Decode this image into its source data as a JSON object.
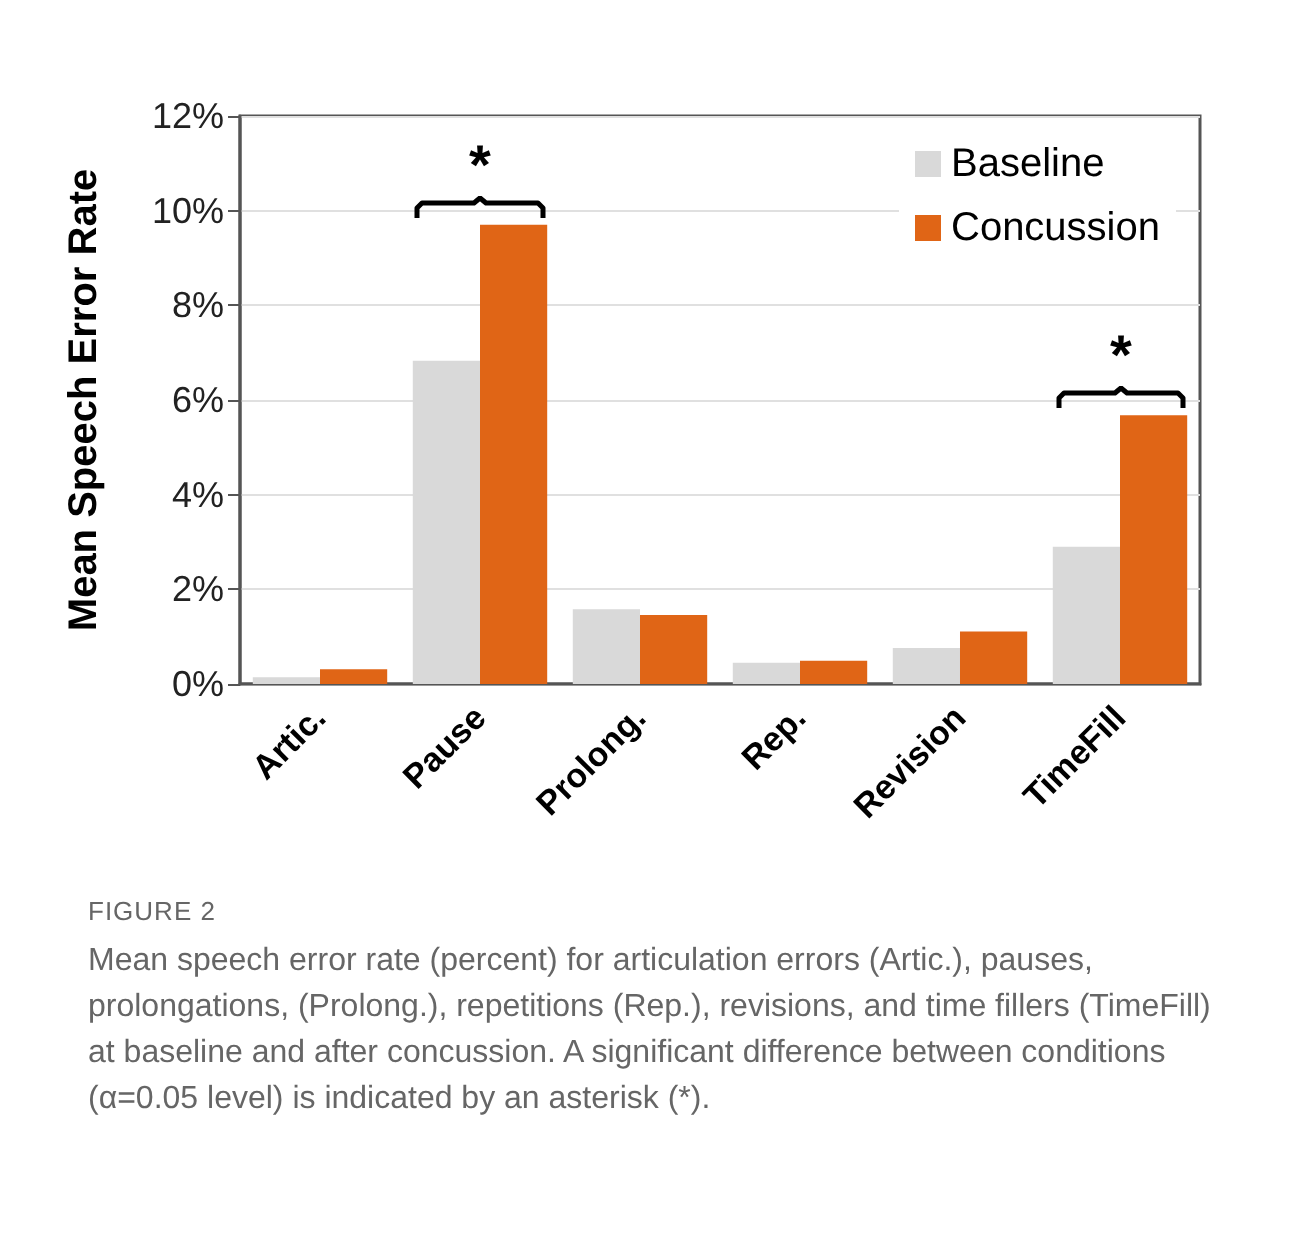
{
  "chart_data": {
    "type": "bar",
    "ylabel": "Mean Speech Error Rate",
    "categories": [
      "Artic.",
      "Pause",
      "Prolong.",
      "Rep.",
      "Revision",
      "TimeFill"
    ],
    "series": [
      {
        "name": "Baseline",
        "color": "#d9d9d9",
        "values": [
          0.14,
          6.83,
          1.58,
          0.45,
          0.76,
          2.9
        ]
      },
      {
        "name": "Concussion",
        "color": "#e06516",
        "values": [
          0.31,
          9.7,
          1.46,
          0.49,
          1.11,
          5.68
        ]
      }
    ],
    "ylim": [
      0,
      12
    ],
    "yticks": [
      {
        "value": 0,
        "label": "0%"
      },
      {
        "value": 2,
        "label": "2%"
      },
      {
        "value": 4,
        "label": "4%"
      },
      {
        "value": 6,
        "label": "6%"
      },
      {
        "value": 8,
        "label": "8%"
      },
      {
        "value": 10,
        "label": "10%"
      },
      {
        "value": 12,
        "label": "12%"
      }
    ],
    "grid": "y",
    "legend": "top right",
    "annotations": [
      "*",
      "*",
      "FIGURE 2",
      "Mean speech error rate (percent) for articulation errors (Artic.), pauses, prolongations, (Prolong.), repetitions (Rep.), revisions, and time fillers (TimeFill) at baseline and after concussion. A significant difference between conditions (α=0.05 level) is indicated by an asterisk (*)."
    ]
  }
}
